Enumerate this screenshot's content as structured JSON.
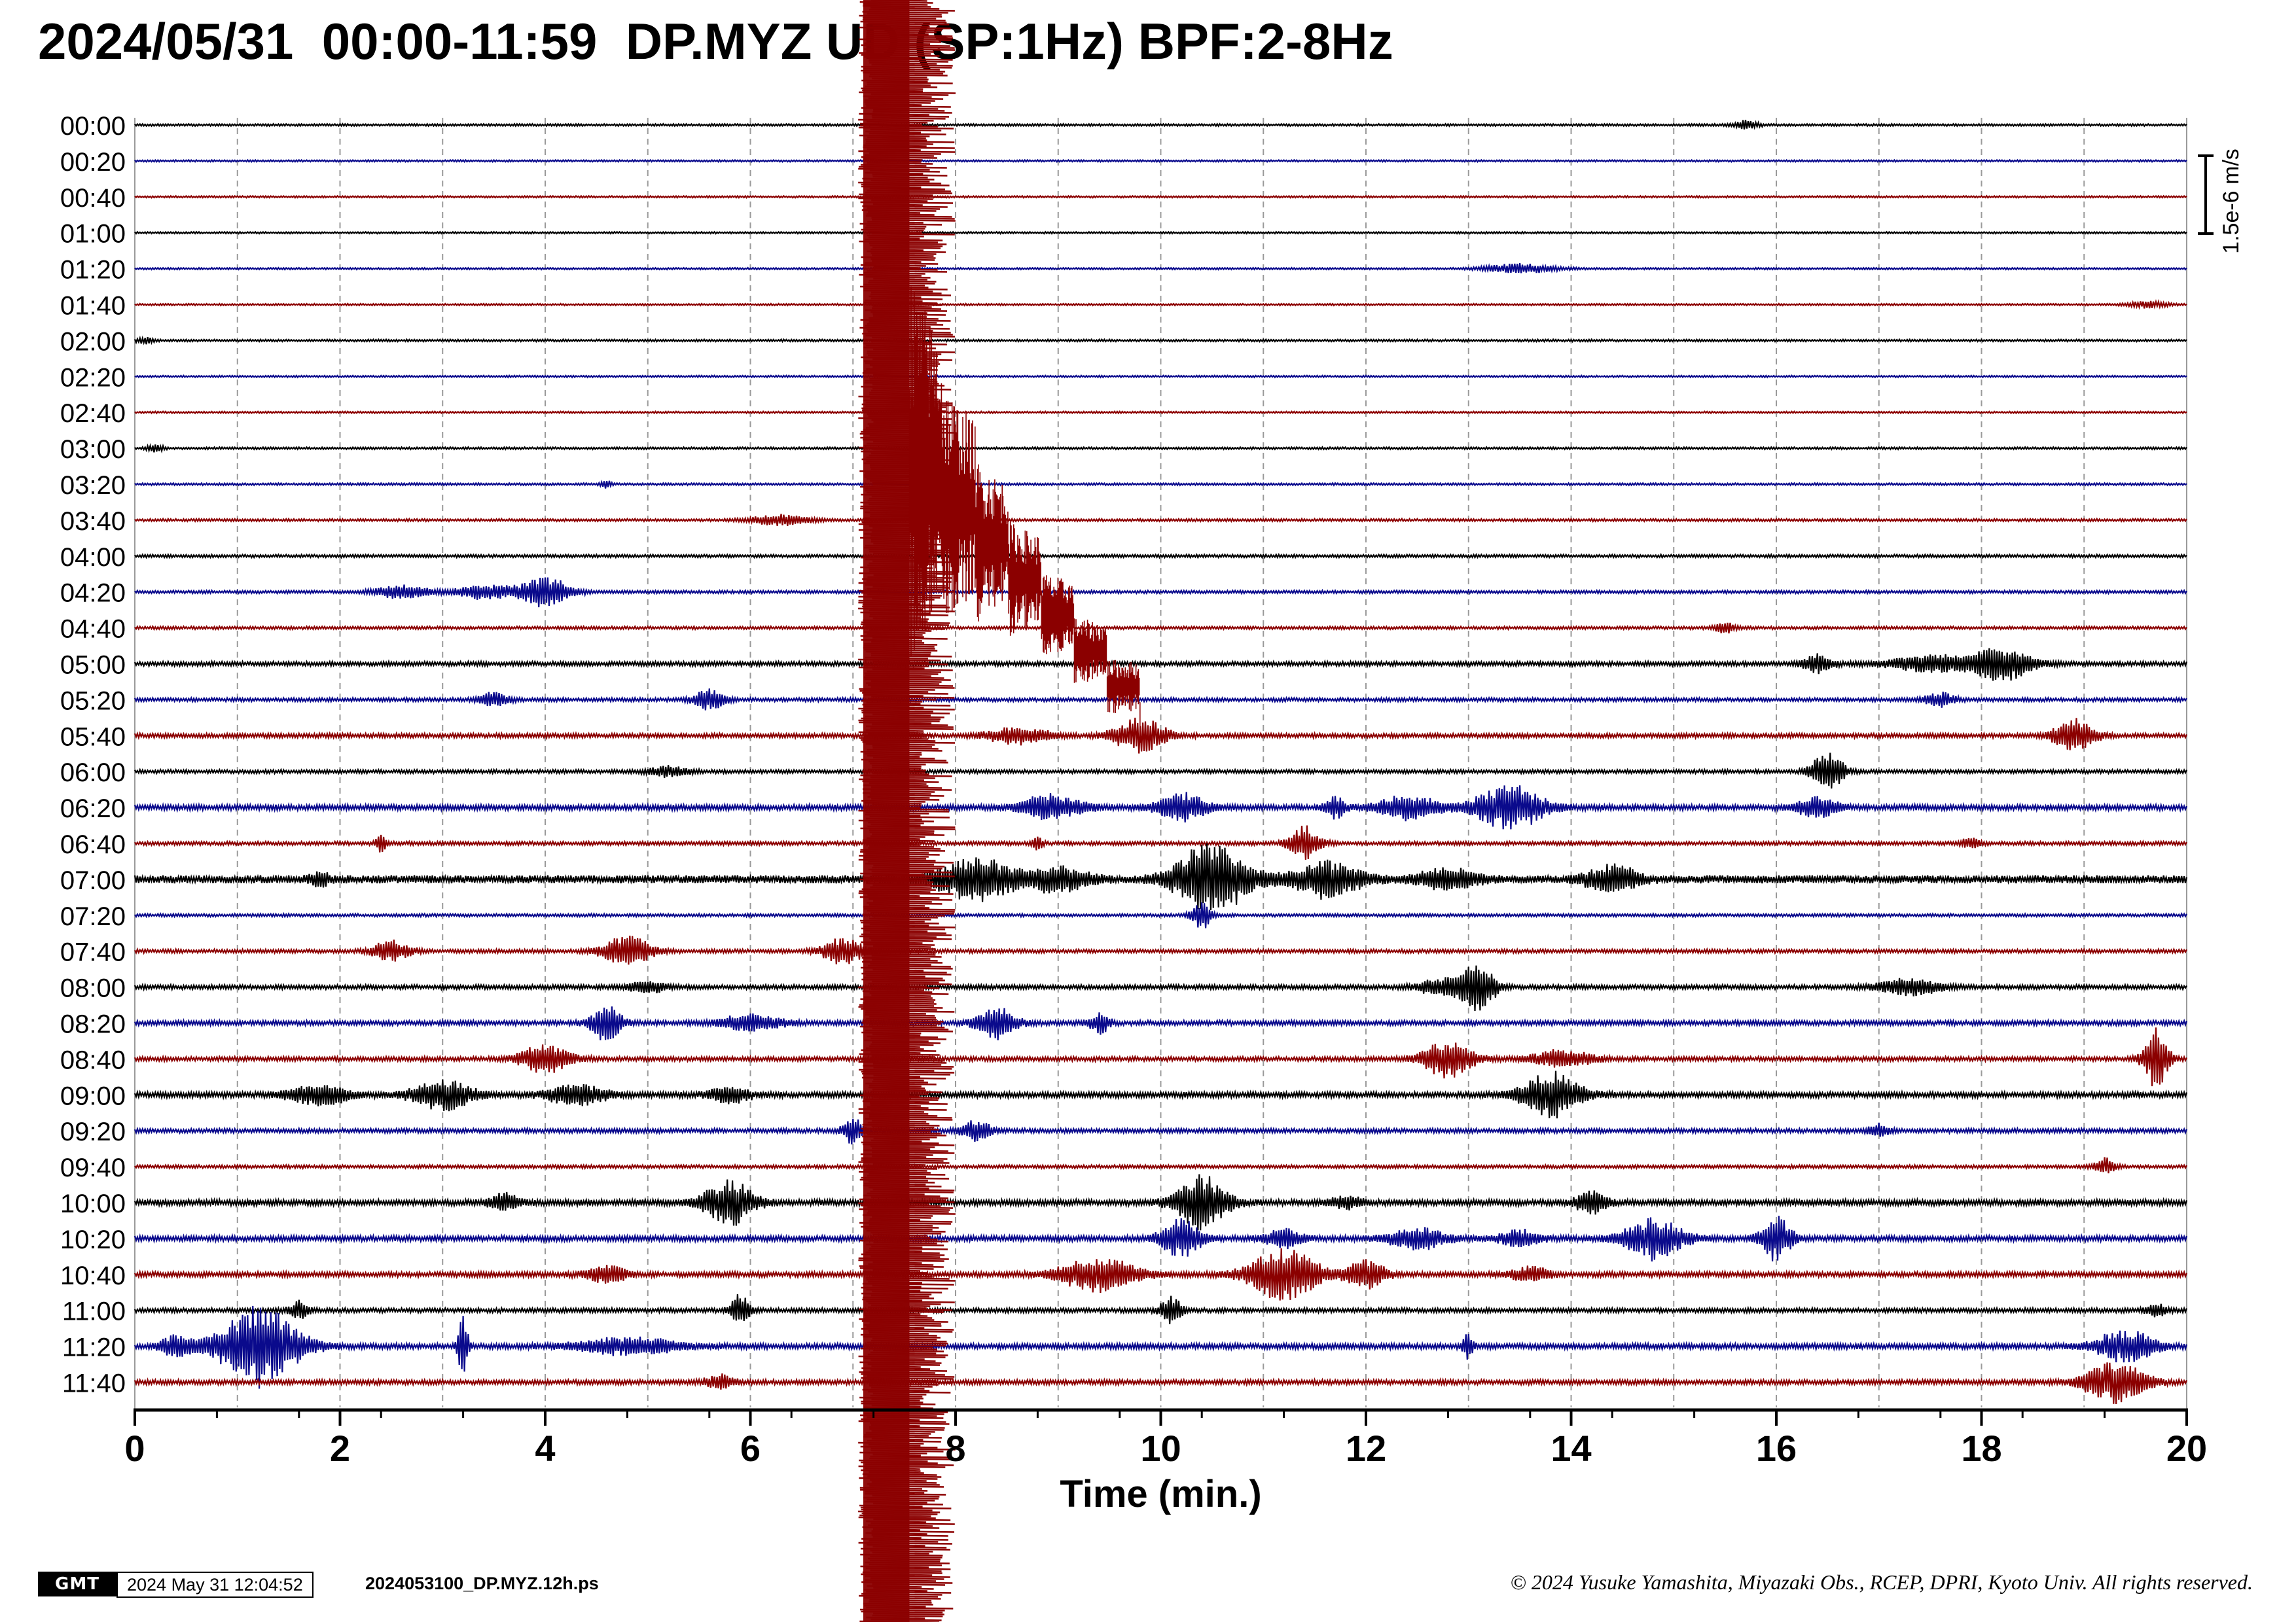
{
  "title": "2024/05/31  00:00-11:59  DP.MYZ UD (SP:1Hz) BPF:2-8Hz",
  "footer": {
    "logo_text": "GMT",
    "timestamp": "2024 May 31 12:04:52",
    "filename": "2024053100_DP.MYZ.12h.ps",
    "copyright": "© 2024 Yusuke Yamashita, Miyazaki Obs., RCEP, DPRI, Kyoto Univ. All rights reserved."
  },
  "colors": {
    "trace_cycle": [
      "#000000",
      "#0a0a8c",
      "#8b0000"
    ],
    "grid": "#9a9a9a",
    "axis": "#000000"
  },
  "chart_data": {
    "type": "line",
    "chart_kind": "helicorder seismogram",
    "xlabel": "Time (min.)",
    "xlim": [
      0,
      20
    ],
    "x_ticks_major": [
      0,
      2,
      4,
      6,
      8,
      10,
      12,
      14,
      16,
      18,
      20
    ],
    "x_tick_labels": [
      "0",
      "2",
      "4",
      "6",
      "8",
      "10",
      "12",
      "14",
      "16",
      "18",
      "20"
    ],
    "x_ticks_minor_interval": 0.8,
    "grid": "vertical dashed lines at every 1 minute",
    "scale_bar_label": "1.5e-6 m/s",
    "scale_bar_value": 1.5e-06,
    "row_labels": [
      "00:00",
      "00:20",
      "00:40",
      "01:00",
      "01:20",
      "01:40",
      "02:00",
      "02:20",
      "02:40",
      "03:00",
      "03:20",
      "03:40",
      "04:00",
      "04:20",
      "04:40",
      "05:00",
      "05:20",
      "05:40",
      "06:00",
      "06:20",
      "06:40",
      "07:00",
      "07:20",
      "07:40",
      "08:00",
      "08:20",
      "08:40",
      "09:00",
      "09:20",
      "09:40",
      "10:00",
      "10:20",
      "10:40",
      "11:00",
      "11:20",
      "11:40"
    ],
    "rows": [
      {
        "noise": 0.06,
        "bursts": [
          [
            15.7,
            0.12,
            0.25
          ]
        ]
      },
      {
        "noise": 0.05,
        "bursts": []
      },
      {
        "noise": 0.05,
        "bursts": []
      },
      {
        "noise": 0.05,
        "bursts": []
      },
      {
        "noise": 0.05,
        "bursts": [
          [
            13.5,
            0.35,
            0.3
          ]
        ]
      },
      {
        "noise": 0.05,
        "bursts": [
          [
            19.6,
            0.2,
            0.2
          ]
        ]
      },
      {
        "noise": 0.06,
        "bursts": [
          [
            0.1,
            0.08,
            0.2
          ]
        ]
      },
      {
        "noise": 0.05,
        "bursts": []
      },
      {
        "noise": 0.05,
        "bursts": []
      },
      {
        "noise": 0.06,
        "bursts": [
          [
            0.2,
            0.08,
            0.2
          ]
        ]
      },
      {
        "noise": 0.06,
        "bursts": [
          [
            4.6,
            0.05,
            0.25
          ]
        ]
      },
      {
        "noise": 0.07,
        "bursts": [
          [
            6.3,
            0.3,
            0.3
          ]
        ]
      },
      {
        "noise": 0.08,
        "bursts": []
      },
      {
        "noise": 0.08,
        "bursts": [
          [
            2.6,
            0.25,
            0.4
          ],
          [
            4.0,
            0.25,
            0.9
          ],
          [
            3.4,
            0.3,
            0.4
          ]
        ]
      },
      {
        "noise": 0.08,
        "bursts": [
          [
            15.5,
            0.1,
            0.3
          ]
        ]
      },
      {
        "noise": 0.12,
        "bursts": [
          [
            16.4,
            0.15,
            0.5
          ],
          [
            18.2,
            0.3,
            1.0
          ],
          [
            17.5,
            0.4,
            0.5
          ]
        ]
      },
      {
        "noise": 0.1,
        "bursts": [
          [
            5.6,
            0.15,
            0.6
          ],
          [
            3.5,
            0.15,
            0.4
          ],
          [
            17.6,
            0.15,
            0.4
          ]
        ]
      },
      {
        "noise": 0.12,
        "bursts": [
          [
            9.8,
            0.25,
            1.1
          ],
          [
            18.9,
            0.2,
            1.0
          ],
          [
            8.6,
            0.3,
            0.5
          ]
        ]
      },
      {
        "noise": 0.1,
        "bursts": [
          [
            16.5,
            0.15,
            1.3
          ],
          [
            5.2,
            0.2,
            0.3
          ]
        ]
      },
      {
        "noise": 0.15,
        "bursts": [
          [
            10.2,
            0.25,
            0.8
          ],
          [
            13.4,
            0.35,
            1.3
          ],
          [
            12.4,
            0.3,
            0.7
          ],
          [
            11.7,
            0.1,
            0.6
          ],
          [
            16.4,
            0.2,
            0.6
          ],
          [
            9.0,
            0.3,
            0.5
          ],
          [
            8.8,
            0.2,
            0.4
          ]
        ]
      },
      {
        "noise": 0.1,
        "bursts": [
          [
            11.4,
            0.15,
            1.0
          ],
          [
            2.4,
            0.05,
            0.5
          ],
          [
            8.8,
            0.05,
            0.5
          ],
          [
            17.9,
            0.1,
            0.3
          ]
        ]
      },
      {
        "noise": 0.22,
        "bursts": [
          [
            10.5,
            0.35,
            2.2
          ],
          [
            8.2,
            0.4,
            1.2
          ],
          [
            11.6,
            0.35,
            1.0
          ],
          [
            14.4,
            0.25,
            0.8
          ],
          [
            9.0,
            0.3,
            0.7
          ],
          [
            12.8,
            0.3,
            0.6
          ],
          [
            1.8,
            0.1,
            0.4
          ]
        ]
      },
      {
        "noise": 0.08,
        "bursts": [
          [
            10.4,
            0.1,
            0.8
          ]
        ]
      },
      {
        "noise": 0.1,
        "bursts": [
          [
            4.8,
            0.25,
            0.9
          ],
          [
            2.5,
            0.2,
            0.6
          ],
          [
            6.9,
            0.2,
            0.8
          ]
        ]
      },
      {
        "noise": 0.12,
        "bursts": [
          [
            13.1,
            0.15,
            1.5
          ],
          [
            17.3,
            0.3,
            0.5
          ],
          [
            12.8,
            0.3,
            0.5
          ],
          [
            5.0,
            0.2,
            0.3
          ]
        ]
      },
      {
        "noise": 0.13,
        "bursts": [
          [
            4.6,
            0.15,
            1.2
          ],
          [
            8.4,
            0.2,
            0.9
          ],
          [
            6.0,
            0.3,
            0.5
          ],
          [
            9.4,
            0.1,
            0.6
          ]
        ]
      },
      {
        "noise": 0.12,
        "bursts": [
          [
            19.7,
            0.12,
            1.8
          ],
          [
            12.8,
            0.25,
            1.1
          ],
          [
            4.0,
            0.25,
            0.9
          ],
          [
            13.9,
            0.3,
            0.5
          ]
        ]
      },
      {
        "noise": 0.15,
        "bursts": [
          [
            13.8,
            0.3,
            1.3
          ],
          [
            3.0,
            0.3,
            0.9
          ],
          [
            4.3,
            0.3,
            0.6
          ],
          [
            1.8,
            0.3,
            0.6
          ],
          [
            5.8,
            0.2,
            0.5
          ]
        ]
      },
      {
        "noise": 0.12,
        "bursts": [
          [
            7.0,
            0.1,
            0.8
          ],
          [
            8.2,
            0.15,
            0.6
          ],
          [
            17.0,
            0.1,
            0.4
          ]
        ]
      },
      {
        "noise": 0.09,
        "bursts": [
          [
            19.2,
            0.1,
            0.5
          ]
        ]
      },
      {
        "noise": 0.16,
        "bursts": [
          [
            5.8,
            0.25,
            1.3
          ],
          [
            10.4,
            0.25,
            1.6
          ],
          [
            14.2,
            0.15,
            0.7
          ],
          [
            3.6,
            0.15,
            0.5
          ],
          [
            11.8,
            0.15,
            0.4
          ]
        ]
      },
      {
        "noise": 0.15,
        "bursts": [
          [
            14.8,
            0.3,
            1.2
          ],
          [
            16.0,
            0.15,
            1.3
          ],
          [
            10.2,
            0.2,
            1.1
          ],
          [
            12.5,
            0.3,
            0.6
          ],
          [
            13.5,
            0.2,
            0.5
          ],
          [
            11.2,
            0.2,
            0.5
          ]
        ]
      },
      {
        "noise": 0.14,
        "bursts": [
          [
            11.2,
            0.35,
            1.5
          ],
          [
            9.4,
            0.4,
            1.0
          ],
          [
            12.0,
            0.2,
            0.8
          ],
          [
            4.6,
            0.2,
            0.5
          ],
          [
            13.6,
            0.2,
            0.4
          ]
        ]
      },
      {
        "noise": 0.12,
        "bursts": [
          [
            10.1,
            0.1,
            0.8
          ],
          [
            5.9,
            0.1,
            0.9
          ],
          [
            1.6,
            0.1,
            0.5
          ],
          [
            19.7,
            0.1,
            0.4
          ]
        ]
      },
      {
        "noise": 0.15,
        "bursts": [
          [
            1.2,
            0.4,
            2.4
          ],
          [
            0.4,
            0.15,
            0.6
          ],
          [
            3.2,
            0.05,
            1.8
          ],
          [
            4.8,
            0.5,
            0.5
          ],
          [
            13.0,
            0.05,
            0.8
          ],
          [
            19.4,
            0.3,
            0.9
          ]
        ]
      },
      {
        "noise": 0.13,
        "bursts": [
          [
            19.3,
            0.3,
            1.2
          ],
          [
            5.7,
            0.15,
            0.4
          ]
        ]
      }
    ],
    "events": [
      {
        "start_min": 7.05,
        "start_row_label": "00:00",
        "direction": "down",
        "end_row_label": "11:40",
        "end_min": 7.8,
        "overflow_below_axis": true
      },
      {
        "start_min": 7.8,
        "start_row_label": "03:20",
        "end_min": 9.6,
        "end_row_label": "04:40",
        "decay": "coda"
      }
    ]
  }
}
